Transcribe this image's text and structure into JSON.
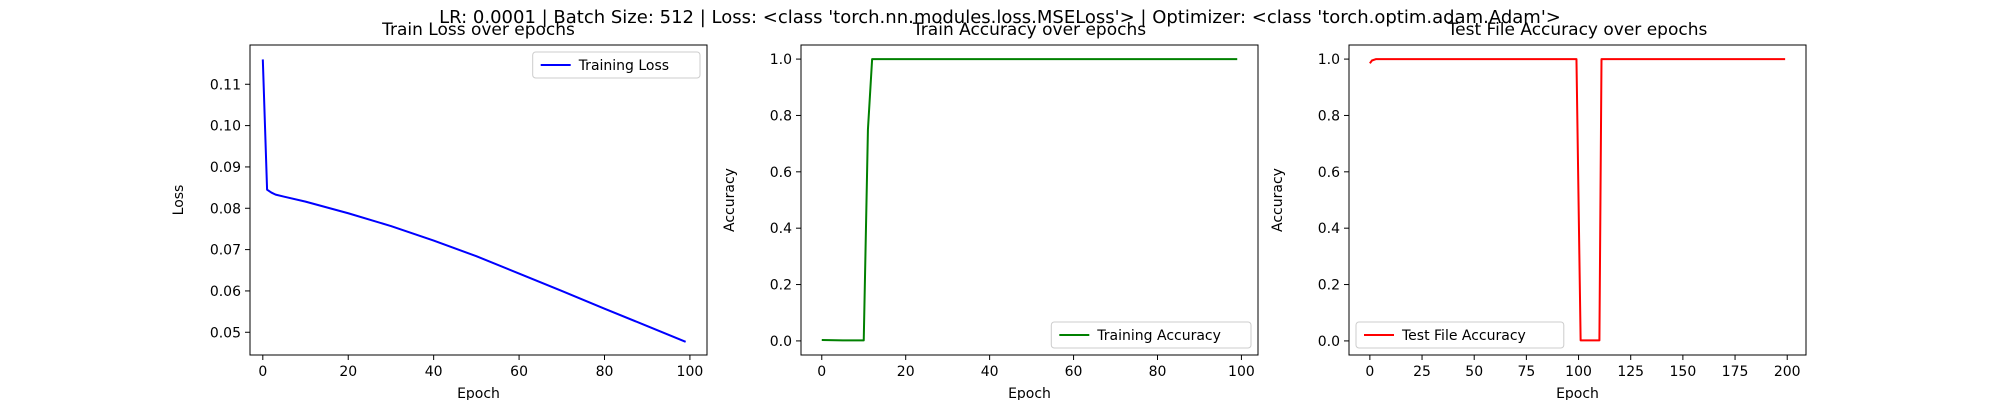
{
  "suptitle": "LR: 0.0001 | Batch Size: 512 | Loss: <class 'torch.nn.modules.loss.MSELoss'> | Optimizer: <class 'torch.optim.adam.Adam'>",
  "chart_data": [
    {
      "type": "line",
      "title": "Train Loss over epochs",
      "xlabel": "Epoch",
      "ylabel": "Loss",
      "xlim": [
        -3,
        104
      ],
      "ylim": [
        0.0445,
        0.1195
      ],
      "xticks": [
        0,
        20,
        40,
        60,
        80,
        100
      ],
      "yticks": [
        0.05,
        0.06,
        0.07,
        0.08,
        0.09,
        0.1,
        0.11
      ],
      "legend_position": "top-right",
      "grid": false,
      "series": [
        {
          "name": "Training Loss",
          "color": "#0000ff",
          "x": [
            0,
            1,
            2,
            3,
            5,
            10,
            20,
            30,
            40,
            50,
            60,
            70,
            80,
            90,
            99
          ],
          "y": [
            0.116,
            0.0845,
            0.0838,
            0.0833,
            0.0828,
            0.0816,
            0.0788,
            0.0757,
            0.0722,
            0.0684,
            0.0642,
            0.06,
            0.0557,
            0.0515,
            0.0477
          ]
        }
      ]
    },
    {
      "type": "line",
      "title": "Train Accuracy over epochs",
      "xlabel": "Epoch",
      "ylabel": "Accuracy",
      "xlim": [
        -4.95,
        103.95
      ],
      "ylim": [
        -0.05,
        1.05
      ],
      "xticks": [
        0,
        20,
        40,
        60,
        80,
        100
      ],
      "yticks": [
        0.0,
        0.2,
        0.4,
        0.6,
        0.8,
        1.0
      ],
      "legend_position": "bottom-right",
      "grid": false,
      "series": [
        {
          "name": "Training Accuracy",
          "color": "#008000",
          "x": [
            0,
            5,
            10,
            11,
            12,
            20,
            40,
            60,
            80,
            99
          ],
          "y": [
            0.003,
            0.002,
            0.002,
            0.75,
            1.0,
            1.0,
            1.0,
            1.0,
            1.0,
            1.0
          ]
        }
      ]
    },
    {
      "type": "line",
      "title": "Test File Accuracy over epochs",
      "xlabel": "Epoch",
      "ylabel": "Accuracy",
      "xlim": [
        -10,
        209
      ],
      "ylim": [
        -0.05,
        1.05
      ],
      "xticks": [
        0,
        25,
        50,
        75,
        100,
        125,
        150,
        175,
        200
      ],
      "yticks": [
        0.0,
        0.2,
        0.4,
        0.6,
        0.8,
        1.0
      ],
      "legend_position": "bottom-left",
      "grid": false,
      "series": [
        {
          "name": "Test File Accuracy",
          "color": "#ff0000",
          "x": [
            0,
            1,
            3,
            10,
            50,
            99,
            100,
            101,
            110,
            111,
            150,
            199
          ],
          "y": [
            0.985,
            0.995,
            1.0,
            1.0,
            1.0,
            1.0,
            0.5,
            0.002,
            0.002,
            1.0,
            1.0,
            1.0
          ]
        }
      ]
    }
  ]
}
